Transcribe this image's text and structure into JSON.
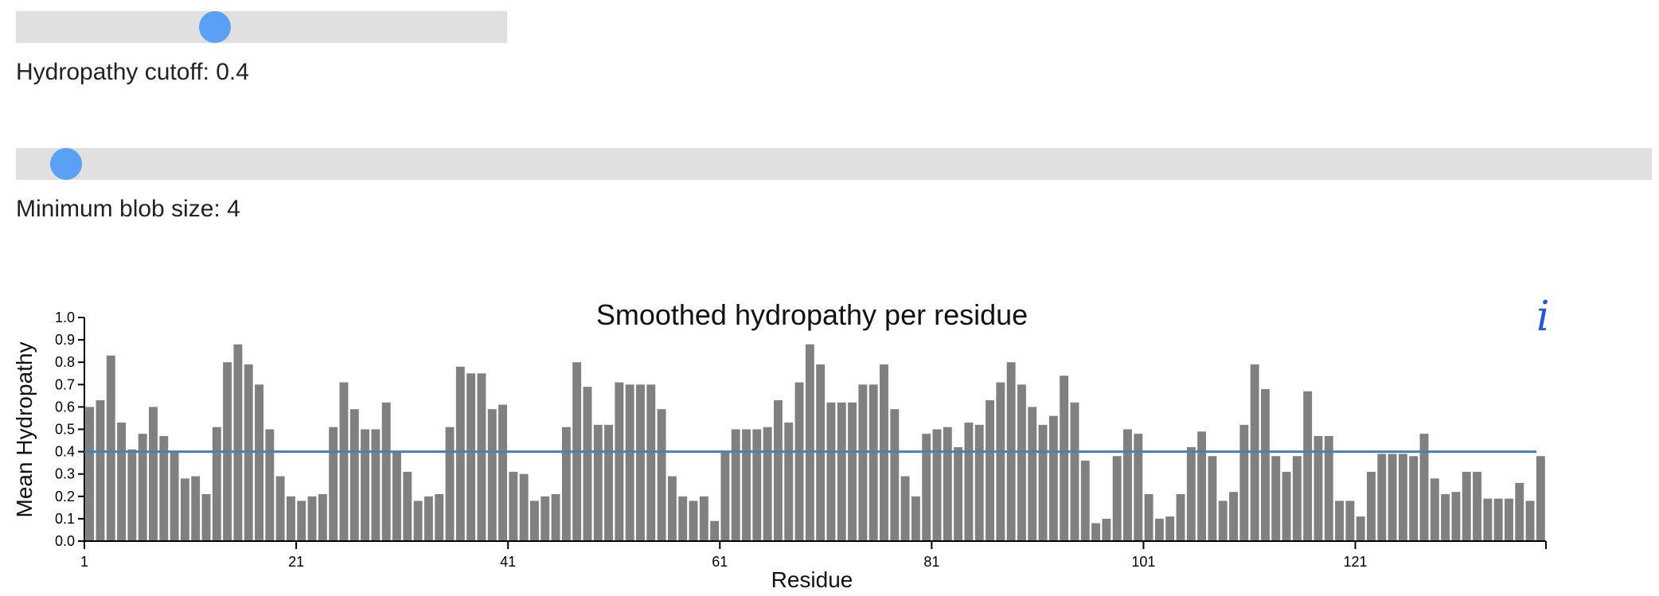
{
  "sliders": [
    {
      "label": "Hydropathy cutoff: 0.4",
      "value": 0.4,
      "min": 0,
      "max": 1
    },
    {
      "label": "Minimum blob size: 4",
      "value": 4,
      "min": 1,
      "max": 100
    }
  ],
  "info_icon": "i",
  "colors": {
    "bar": "#808080",
    "cutoff_line": "#4682b4",
    "slider_track": "#e0e0e0",
    "slider_thumb": "#5aa0f5"
  },
  "chart_data": {
    "type": "bar",
    "title": "Smoothed hydropathy per residue",
    "xlabel": "Residue",
    "ylabel": "Mean Hydropathy",
    "ylim": [
      0,
      1.0
    ],
    "yticks": [
      "0.0",
      "0.1",
      "0.2",
      "0.3",
      "0.4",
      "0.5",
      "0.6",
      "0.7",
      "0.8",
      "0.9",
      "1.0"
    ],
    "xticks": [
      "1",
      "21",
      "41",
      "61",
      "81",
      "101",
      "121"
    ],
    "cutoff": 0.4,
    "residues_start": 1,
    "values": [
      0.6,
      0.63,
      0.83,
      0.53,
      0.41,
      0.48,
      0.6,
      0.47,
      0.4,
      0.28,
      0.29,
      0.21,
      0.51,
      0.8,
      0.88,
      0.79,
      0.7,
      0.5,
      0.29,
      0.2,
      0.18,
      0.2,
      0.21,
      0.51,
      0.71,
      0.59,
      0.5,
      0.5,
      0.62,
      0.4,
      0.31,
      0.18,
      0.2,
      0.21,
      0.51,
      0.78,
      0.75,
      0.75,
      0.59,
      0.61,
      0.31,
      0.3,
      0.18,
      0.2,
      0.21,
      0.51,
      0.8,
      0.69,
      0.52,
      0.52,
      0.71,
      0.7,
      0.7,
      0.7,
      0.59,
      0.29,
      0.2,
      0.18,
      0.2,
      0.09,
      0.4,
      0.5,
      0.5,
      0.5,
      0.51,
      0.63,
      0.53,
      0.71,
      0.88,
      0.79,
      0.62,
      0.62,
      0.62,
      0.7,
      0.7,
      0.79,
      0.59,
      0.29,
      0.2,
      0.48,
      0.5,
      0.51,
      0.42,
      0.53,
      0.52,
      0.63,
      0.71,
      0.8,
      0.7,
      0.6,
      0.52,
      0.56,
      0.74,
      0.62,
      0.36,
      0.08,
      0.1,
      0.38,
      0.5,
      0.48,
      0.21,
      0.1,
      0.11,
      0.21,
      0.42,
      0.49,
      0.38,
      0.18,
      0.22,
      0.52,
      0.79,
      0.68,
      0.38,
      0.31,
      0.38,
      0.67,
      0.47,
      0.47,
      0.18,
      0.18,
      0.11,
      0.31,
      0.39,
      0.39,
      0.39,
      0.38,
      0.48,
      0.28,
      0.21,
      0.22,
      0.31,
      0.31,
      0.19,
      0.19,
      0.19,
      0.26,
      0.18,
      0.38
    ]
  }
}
